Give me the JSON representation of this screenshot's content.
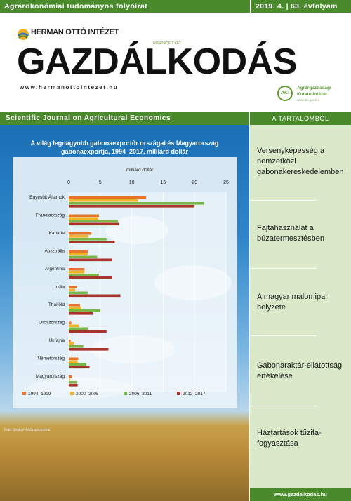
{
  "topbar": {
    "left": "Agrárökonómiai tudományos folyóirat",
    "right": "2019. 4. | 63. évfolyam"
  },
  "header": {
    "logo_text": "HERMAN OTTÓ INTÉZET",
    "logo_sub": "NONPROFIT KFT.",
    "masthead": "GAZDÁLKODÁS",
    "url": "www.hermanottointezet.hu",
    "aki_badge": "AKI",
    "aki_line1": "Agrárgazdasági",
    "aki_line2": "Kutató Intézet",
    "aki_line3": "www.aki.gov.hu"
  },
  "subbar": "Scientific Journal on Agricultural Economics",
  "sidebar": {
    "head": "A TARTALOMBÓL",
    "articles": [
      "Versenyképesség a nemzetközi gabonakereskedelemben",
      "Fajtahasználat a búzatermesztésben",
      "A magyar malomipar helyzete",
      "Gabonaraktár-ellátottság értékelése",
      "Háztartások tűzifa-fogyasztása"
    ],
    "footer_url": "www.gazdalkodas.hu"
  },
  "photo_credit": "Fotó: Jenkier Attila szerintünk",
  "colors": {
    "green": "#4a8a2c",
    "s1": "#e8742a",
    "s2": "#f0b429",
    "s3": "#7ab548",
    "s4": "#a8332a"
  },
  "chart_data": {
    "type": "bar",
    "orientation": "horizontal",
    "title_line1": "A világ legnagyobb gabonaexportőr országai és Magyarország",
    "title_line2": "gabonaexportja, 1994–2017, milliárd dollár",
    "xlabel": "milliárd dollár",
    "xlim": [
      0,
      25
    ],
    "xticks": [
      "0",
      "5",
      "10",
      "15",
      "20",
      "25"
    ],
    "categories": [
      "Egyesült Államok",
      "Franciaország",
      "Kanada",
      "Ausztrália",
      "Argentína",
      "India",
      "Thaiföld",
      "Oroszország",
      "Ukrajna",
      "Németország",
      "Magyarország"
    ],
    "series": [
      {
        "name": "1994–1999",
        "values": [
          12.3,
          4.8,
          3.6,
          3.0,
          2.5,
          1.3,
          1.8,
          0.4,
          0.3,
          1.5,
          0.5
        ]
      },
      {
        "name": "2000–2005",
        "values": [
          11.0,
          4.7,
          3.1,
          3.0,
          2.5,
          1.0,
          2.0,
          1.6,
          0.8,
          1.4,
          0.2
        ]
      },
      {
        "name": "2006–2011",
        "values": [
          21.5,
          7.8,
          6.0,
          4.5,
          4.8,
          3.0,
          5.0,
          3.0,
          2.3,
          2.8,
          1.3
        ]
      },
      {
        "name": "2012–2017",
        "values": [
          20.0,
          8.0,
          7.3,
          6.9,
          6.9,
          8.2,
          3.9,
          6.0,
          6.3,
          3.3,
          1.4
        ]
      }
    ],
    "grid": true,
    "legend_position": "bottom"
  }
}
